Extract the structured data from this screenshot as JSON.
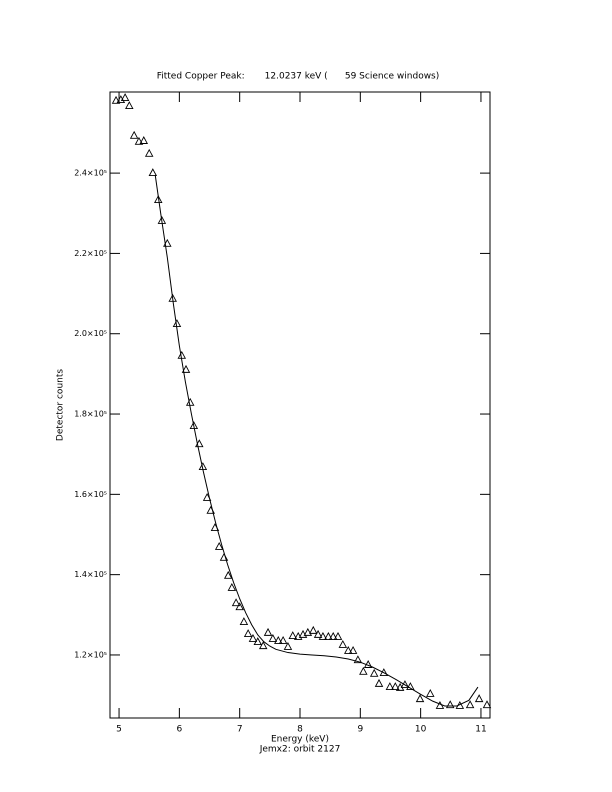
{
  "chart_data": {
    "type": "scatter",
    "title": "Fitted Copper Peak:       12.0237 keV (      59 Science windows)",
    "x_label": "Energy (keV)",
    "subtitle": "Jemx2: orbit 2127",
    "y_label": "Detector counts",
    "xlim": [
      4.85,
      11.15
    ],
    "ylim": [
      104300,
      260200
    ],
    "xticks": [
      5,
      6,
      7,
      8,
      9,
      10,
      11
    ],
    "yticks": [
      {
        "value": 120000,
        "label": "1.2×10⁵"
      },
      {
        "value": 140000,
        "label": "1.4×10⁵"
      },
      {
        "value": 160000,
        "label": "1.6×10⁵"
      },
      {
        "value": 180000,
        "label": "1.8×10⁵"
      },
      {
        "value": 200000,
        "label": "2.0×10⁵"
      },
      {
        "value": 220000,
        "label": "2.2×10⁵"
      },
      {
        "value": 240000,
        "label": "2.4×10⁵"
      }
    ],
    "series": [
      {
        "type": "scatter",
        "marker": "triangle",
        "color": "#000000",
        "x": [
          4.95,
          5.03,
          5.1,
          5.17,
          5.25,
          5.33,
          5.41,
          5.5,
          5.56,
          5.65,
          5.71,
          5.8,
          5.89,
          5.96,
          6.04,
          6.11,
          6.18,
          6.24,
          6.33,
          6.39,
          6.46,
          6.52,
          6.59,
          6.66,
          6.74,
          6.81,
          6.87,
          6.94,
          7.0,
          7.07,
          7.14,
          7.22,
          7.3,
          7.39,
          7.47,
          7.55,
          7.64,
          7.72,
          7.8,
          7.88,
          7.97,
          8.05,
          8.13,
          8.22,
          8.3,
          8.38,
          8.47,
          8.55,
          8.63,
          8.71,
          8.8,
          8.88,
          8.96,
          9.05,
          9.13,
          9.23,
          9.31,
          9.39,
          9.49,
          9.58,
          9.66,
          9.74,
          9.83,
          9.99,
          10.16,
          10.32,
          10.49,
          10.65,
          10.82,
          10.97,
          11.1
        ],
        "values": [
          258000,
          258200,
          258700,
          256700,
          249300,
          247800,
          248000,
          244800,
          240000,
          233300,
          228100,
          222400,
          208700,
          202400,
          194500,
          191000,
          182800,
          177000,
          172500,
          166800,
          159100,
          155900,
          151600,
          146900,
          144200,
          139700,
          136700,
          132900,
          131900,
          128200,
          125200,
          124000,
          123200,
          122200,
          125500,
          124000,
          123500,
          123500,
          122000,
          124700,
          124500,
          125000,
          125500,
          126000,
          125000,
          124500,
          124500,
          124500,
          124500,
          122500,
          121000,
          121000,
          118700,
          115800,
          117500,
          115300,
          112800,
          115500,
          112000,
          112000,
          111800,
          112500,
          112000,
          109000,
          110300,
          107300,
          107500,
          107300,
          107500,
          109000,
          107500
        ]
      },
      {
        "type": "line",
        "color": "#000000",
        "x": [
          5.6,
          5.7,
          5.8,
          5.9,
          6.0,
          6.1,
          6.2,
          6.3,
          6.4,
          6.5,
          6.6,
          6.7,
          6.8,
          6.9,
          7.0,
          7.1,
          7.2,
          7.3,
          7.4,
          7.5,
          7.6,
          7.8,
          8.0,
          8.2,
          8.4,
          8.6,
          8.8,
          9.0,
          9.2,
          9.4,
          9.6,
          9.8,
          10.0,
          10.2,
          10.4,
          10.6,
          10.8,
          10.95
        ],
        "values": [
          239500,
          229000,
          219000,
          207500,
          197000,
          188000,
          180000,
          172500,
          165500,
          159000,
          153000,
          147500,
          142500,
          138000,
          134000,
          130500,
          127500,
          125000,
          123300,
          122200,
          121400,
          120600,
          120200,
          120000,
          119800,
          119500,
          119000,
          118200,
          117000,
          115500,
          113800,
          112000,
          110200,
          108500,
          107300,
          107300,
          108700,
          112000
        ]
      }
    ]
  }
}
